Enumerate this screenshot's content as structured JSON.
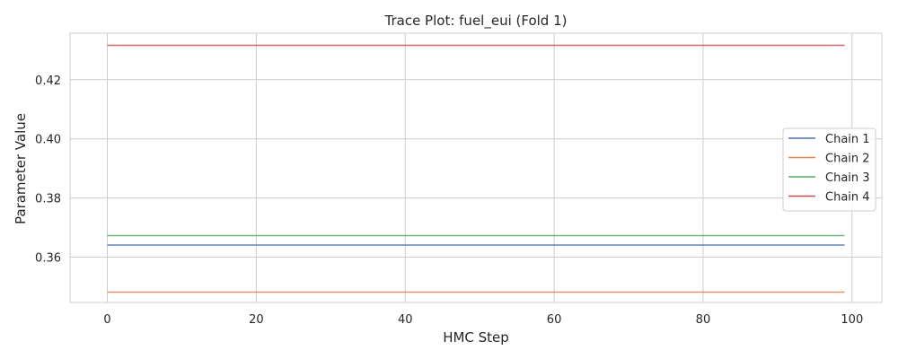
{
  "chart_data": {
    "type": "line",
    "title": "Trace Plot: fuel_eui (Fold 1)",
    "xlabel": "HMC Step",
    "ylabel": "Parameter Value",
    "xlim": [
      -5,
      104
    ],
    "ylim": [
      0.3447,
      0.4357
    ],
    "xticks": [
      0,
      20,
      40,
      60,
      80,
      100
    ],
    "yticks": [
      0.36,
      0.38,
      0.4,
      0.42
    ],
    "ytick_labels": [
      "0.36",
      "0.38",
      "0.40",
      "0.42"
    ],
    "grid": true,
    "legend_position": "right",
    "series": [
      {
        "name": "Chain 1",
        "color": "#4c72b0",
        "x": [
          0,
          99
        ],
        "y": [
          0.3641,
          0.3641
        ]
      },
      {
        "name": "Chain 2",
        "color": "#dd8452",
        "x": [
          0,
          99
        ],
        "y": [
          0.3482,
          0.3482
        ]
      },
      {
        "name": "Chain 3",
        "color": "#55a868",
        "x": [
          0,
          99
        ],
        "y": [
          0.3673,
          0.3673
        ]
      },
      {
        "name": "Chain 4",
        "color": "#c44e52",
        "x": [
          0,
          99
        ],
        "y": [
          0.4316,
          0.4316
        ]
      }
    ]
  }
}
